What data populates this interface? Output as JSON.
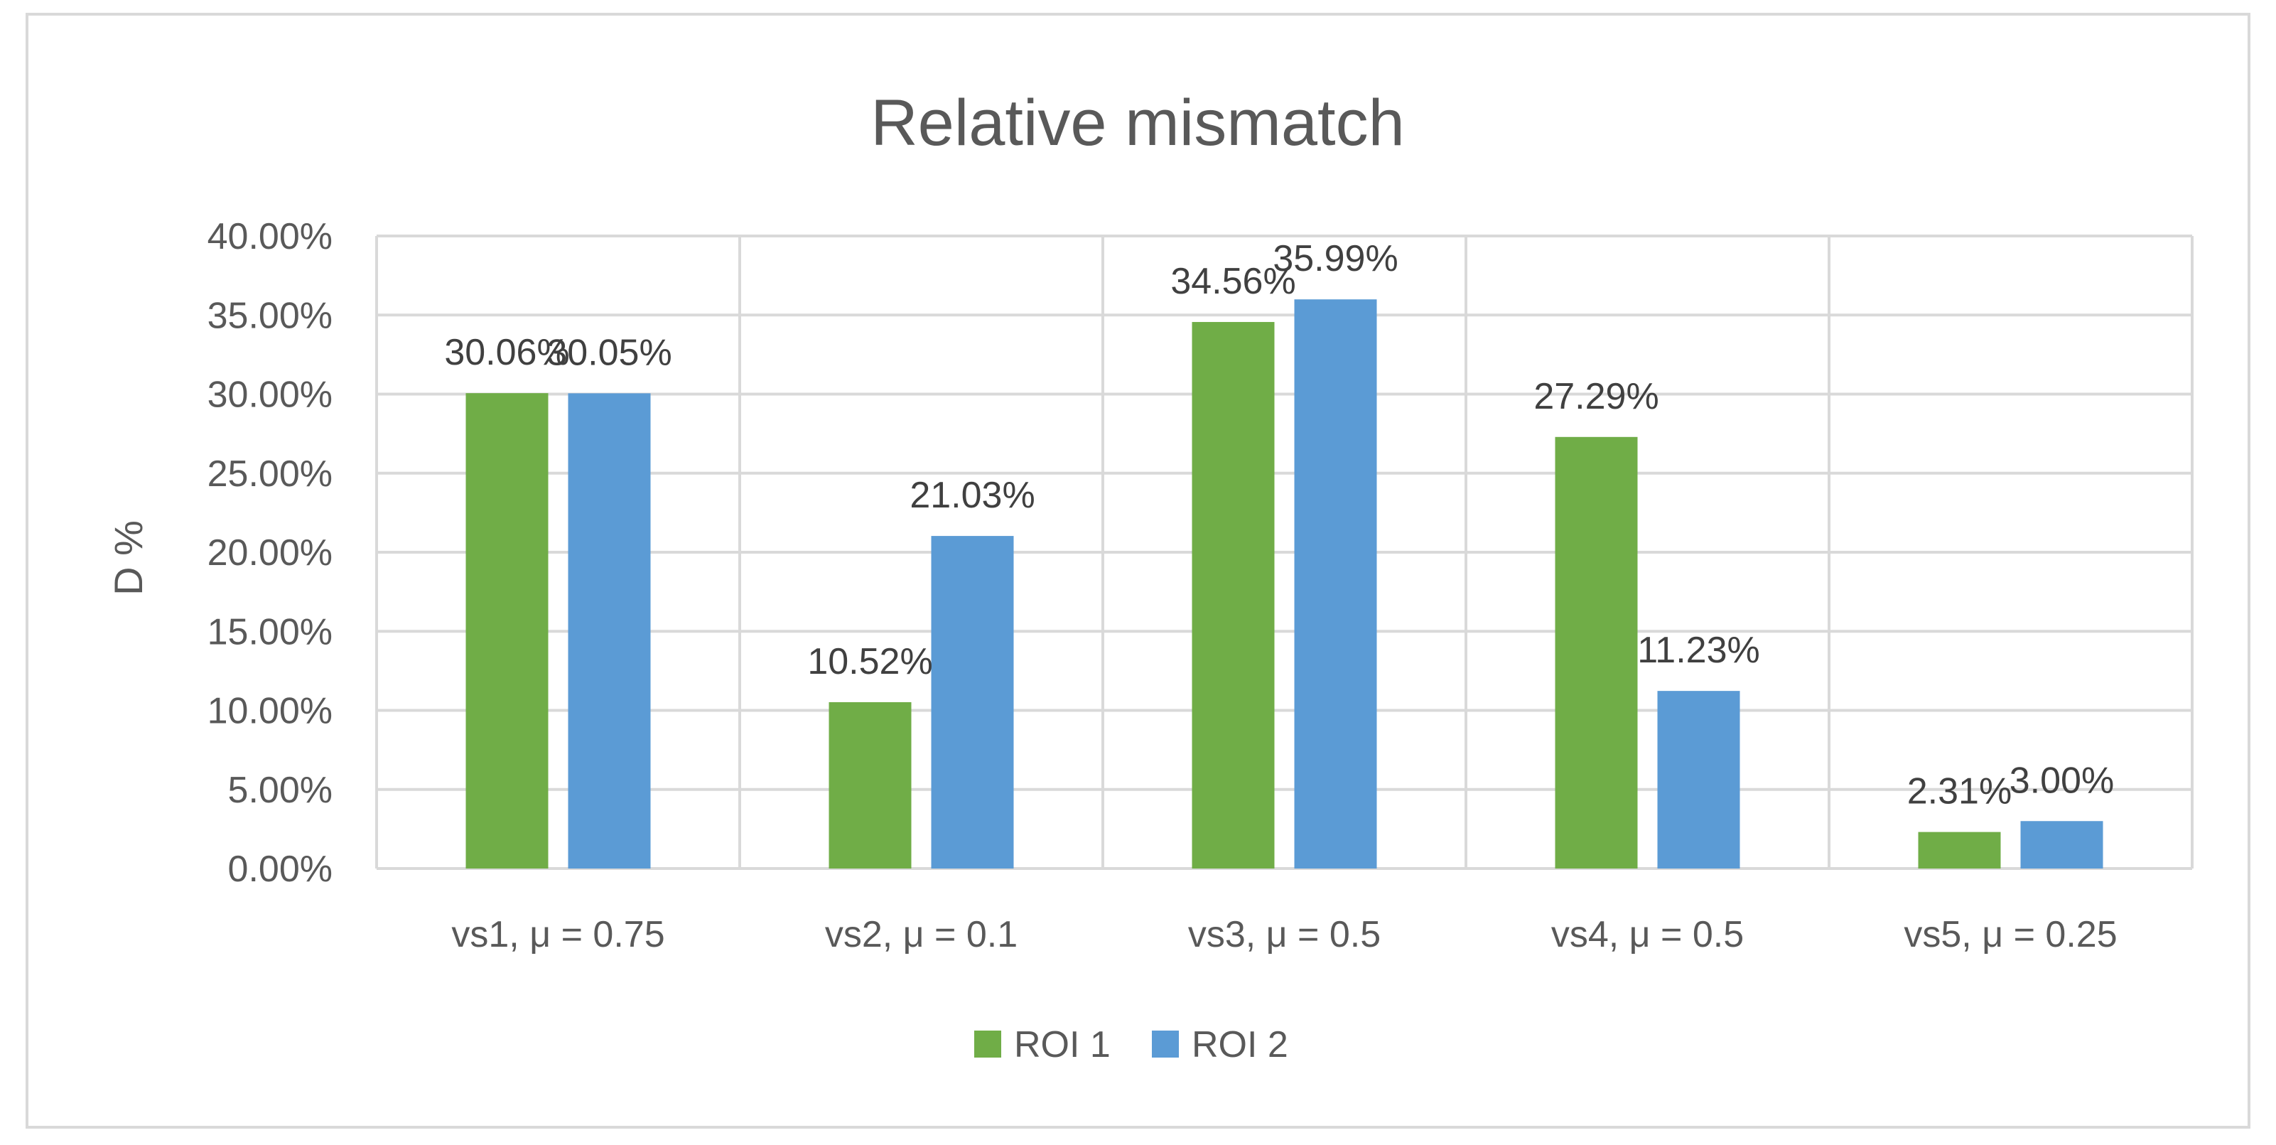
{
  "chart_data": {
    "type": "bar",
    "title": "Relative mismatch",
    "xlabel": "",
    "ylabel": "D %",
    "ylim": [
      0,
      0.4
    ],
    "yticks": [
      0,
      0.05,
      0.1,
      0.15,
      0.2,
      0.25,
      0.3,
      0.35,
      0.4
    ],
    "ytick_labels": [
      "0.00%",
      "5.00%",
      "10.00%",
      "15.00%",
      "20.00%",
      "25.00%",
      "30.00%",
      "35.00%",
      "40.00%"
    ],
    "categories": [
      "vs1, μ = 0.75",
      "vs2, μ = 0.1",
      "vs3, μ = 0.5",
      "vs4, μ = 0.5",
      "vs5, μ = 0.25"
    ],
    "series": [
      {
        "name": "ROI 1",
        "color": "#70ad47",
        "values": [
          0.3006,
          0.1052,
          0.3456,
          0.2729,
          0.0231
        ],
        "labels": [
          "30.06%",
          "10.52%",
          "34.56%",
          "27.29%",
          "2.31%"
        ]
      },
      {
        "name": "ROI 2",
        "color": "#5b9bd5",
        "values": [
          0.3005,
          0.2103,
          0.3599,
          0.1123,
          0.03
        ],
        "labels": [
          "30.05%",
          "21.03%",
          "35.99%",
          "11.23%",
          "3.00%"
        ]
      }
    ],
    "grid": true,
    "legend": "bottom"
  }
}
